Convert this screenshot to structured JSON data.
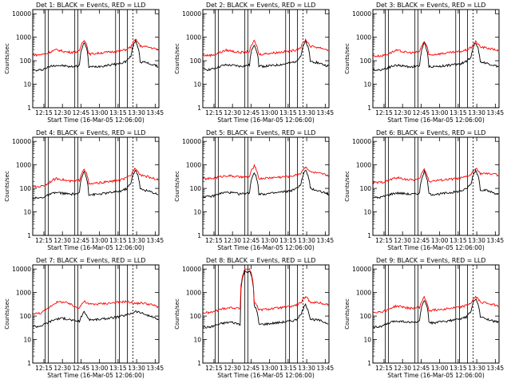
{
  "figure": {
    "layout": "3x3 grid",
    "background": "#ffffff",
    "colors": {
      "events": "#000000",
      "lld": "#ff0000",
      "axes": "#000000"
    }
  },
  "chart_data": [
    {
      "type": "line",
      "title": "Det 1: BLACK = Events, RED = LLD",
      "xlabel": "Start Time (16-Mar-05 12:06:00)",
      "ylabel": "Counts/sec",
      "xticks": [
        "12:15",
        "12:30",
        "12:45",
        "13:00",
        "13:15",
        "13:30",
        "13:45"
      ],
      "yticks": [
        "1",
        "10",
        "100",
        "1000",
        "10000"
      ],
      "yscale": "log",
      "ylim": [
        1,
        15000
      ],
      "xlim_minutes": [
        0,
        102
      ],
      "series": [
        {
          "name": "Events",
          "color": "#000000",
          "values": [
            40,
            38,
            42,
            50,
            60,
            65,
            62,
            60,
            55,
            58,
            62,
            600,
            55,
            55,
            58,
            60,
            65,
            68,
            72,
            80,
            95,
            150,
            700,
            90,
            85,
            75,
            65,
            55
          ]
        },
        {
          "name": "LLD",
          "color": "#ff0000",
          "values": [
            180,
            175,
            185,
            200,
            250,
            290,
            270,
            240,
            230,
            235,
            250,
            800,
            190,
            200,
            210,
            220,
            230,
            240,
            250,
            270,
            300,
            380,
            800,
            420,
            400,
            370,
            330,
            290
          ]
        }
      ]
    },
    {
      "type": "line",
      "title": "Det 2: BLACK = Events, RED = LLD",
      "xlabel": "Start Time (16-Mar-05 12:06:00)",
      "ylabel": "Counts/sec",
      "xticks": [
        "12:15",
        "12:30",
        "12:45",
        "13:00",
        "13:15",
        "13:30",
        "13:45"
      ],
      "yticks": [
        "1",
        "10",
        "100",
        "1000",
        "10000"
      ],
      "yscale": "log",
      "ylim": [
        1,
        15000
      ],
      "xlim_minutes": [
        0,
        102
      ],
      "series": [
        {
          "name": "Events",
          "color": "#000000",
          "values": [
            45,
            42,
            44,
            52,
            60,
            66,
            64,
            62,
            58,
            60,
            65,
            500,
            60,
            58,
            60,
            62,
            66,
            70,
            75,
            82,
            98,
            160,
            650,
            95,
            88,
            78,
            66,
            58
          ]
        },
        {
          "name": "LLD",
          "color": "#ff0000",
          "values": [
            170,
            168,
            175,
            195,
            240,
            280,
            265,
            240,
            228,
            232,
            248,
            700,
            185,
            195,
            205,
            215,
            225,
            238,
            248,
            265,
            295,
            375,
            780,
            410,
            390,
            360,
            320,
            280
          ]
        }
      ]
    },
    {
      "type": "line",
      "title": "Det 3: BLACK = Events, RED = LLD",
      "xlabel": "Start Time (16-Mar-05 12:06:00)",
      "ylabel": "Counts/sec",
      "xticks": [
        "12:15",
        "12:30",
        "12:45",
        "13:00",
        "13:15",
        "13:30",
        "13:45"
      ],
      "yticks": [
        "1",
        "10",
        "100",
        "1000",
        "10000"
      ],
      "yscale": "log",
      "ylim": [
        1,
        15000
      ],
      "xlim_minutes": [
        0,
        102
      ],
      "series": [
        {
          "name": "Events",
          "color": "#000000",
          "values": [
            42,
            40,
            43,
            48,
            58,
            64,
            62,
            58,
            55,
            57,
            60,
            550,
            56,
            56,
            58,
            60,
            64,
            67,
            70,
            78,
            92,
            145,
            600,
            88,
            82,
            72,
            63,
            55
          ]
        },
        {
          "name": "LLD",
          "color": "#ff0000",
          "values": [
            160,
            158,
            165,
            185,
            230,
            270,
            255,
            230,
            220,
            225,
            240,
            650,
            175,
            185,
            195,
            205,
            215,
            225,
            235,
            255,
            285,
            360,
            650,
            380,
            360,
            330,
            300,
            270
          ]
        }
      ]
    },
    {
      "type": "line",
      "title": "Det 4: BLACK = Events, RED = LLD",
      "xlabel": "Start Time (16-Mar-05 12:06:00)",
      "ylabel": "Counts/sec",
      "xticks": [
        "12:15",
        "12:30",
        "12:45",
        "13:00",
        "13:15",
        "13:30",
        "13:45"
      ],
      "yticks": [
        "1",
        "10",
        "100",
        "1000",
        "10000"
      ],
      "yscale": "log",
      "ylim": [
        1,
        15000
      ],
      "xlim_minutes": [
        0,
        102
      ],
      "series": [
        {
          "name": "Events",
          "color": "#000000",
          "values": [
            40,
            38,
            41,
            48,
            58,
            66,
            64,
            60,
            56,
            58,
            62,
            520,
            55,
            55,
            57,
            60,
            64,
            68,
            72,
            80,
            96,
            155,
            620,
            92,
            85,
            74,
            64,
            55
          ]
        },
        {
          "name": "LLD",
          "color": "#ff0000",
          "values": [
            120,
            118,
            125,
            150,
            210,
            260,
            250,
            220,
            200,
            205,
            220,
            700,
            150,
            160,
            170,
            180,
            190,
            200,
            215,
            235,
            270,
            360,
            750,
            380,
            340,
            300,
            260,
            230
          ]
        }
      ]
    },
    {
      "type": "line",
      "title": "Det 5: BLACK = Events, RED = LLD",
      "xlabel": "Start Time (16-Mar-05 12:06:00)",
      "ylabel": "Counts/sec",
      "xticks": [
        "12:15",
        "12:30",
        "12:45",
        "13:00",
        "13:15",
        "13:30",
        "13:45"
      ],
      "yticks": [
        "1",
        "10",
        "100",
        "1000",
        "10000"
      ],
      "yscale": "log",
      "ylim": [
        1,
        15000
      ],
      "xlim_minutes": [
        0,
        102
      ],
      "series": [
        {
          "name": "Events",
          "color": "#000000",
          "values": [
            46,
            44,
            46,
            54,
            62,
            68,
            66,
            62,
            58,
            60,
            66,
            480,
            60,
            58,
            60,
            62,
            66,
            70,
            74,
            82,
            96,
            150,
            600,
            96,
            88,
            76,
            66,
            58
          ]
        },
        {
          "name": "LLD",
          "color": "#ff0000",
          "values": [
            260,
            255,
            265,
            290,
            320,
            350,
            340,
            320,
            300,
            305,
            320,
            900,
            260,
            270,
            280,
            290,
            300,
            310,
            320,
            340,
            370,
            450,
            850,
            500,
            470,
            430,
            390,
            350
          ]
        }
      ]
    },
    {
      "type": "line",
      "title": "Det 6: BLACK = Events, RED = LLD",
      "xlabel": "Start Time (16-Mar-05 12:06:00)",
      "ylabel": "Counts/sec",
      "xticks": [
        "12:15",
        "12:30",
        "12:45",
        "13:00",
        "13:15",
        "13:30",
        "13:45"
      ],
      "yticks": [
        "1",
        "10",
        "100",
        "1000",
        "10000"
      ],
      "yscale": "log",
      "ylim": [
        1,
        15000
      ],
      "xlim_minutes": [
        0,
        102
      ],
      "series": [
        {
          "name": "Events",
          "color": "#000000",
          "values": [
            42,
            40,
            43,
            50,
            58,
            64,
            62,
            60,
            56,
            58,
            62,
            500,
            56,
            56,
            58,
            60,
            64,
            68,
            72,
            80,
            95,
            150,
            600,
            90,
            84,
            74,
            64,
            55
          ]
        },
        {
          "name": "LLD",
          "color": "#ff0000",
          "values": [
            180,
            175,
            185,
            205,
            245,
            285,
            270,
            245,
            230,
            235,
            250,
            650,
            200,
            210,
            220,
            230,
            240,
            250,
            260,
            280,
            310,
            390,
            700,
            430,
            420,
            410,
            430,
            320
          ]
        }
      ]
    },
    {
      "type": "line",
      "title": "Det 7: BLACK = Events, RED = LLD",
      "xlabel": "Start Time (16-Mar-05 12:06:00)",
      "ylabel": "Counts/sec",
      "xticks": [
        "12:15",
        "12:30",
        "12:45",
        "13:00",
        "13:15",
        "13:30",
        "13:45"
      ],
      "yticks": [
        "1",
        "10",
        "100",
        "1000",
        "10000"
      ],
      "yscale": "log",
      "ylim": [
        1,
        15000
      ],
      "xlim_minutes": [
        0,
        102
      ],
      "series": [
        {
          "name": "Events",
          "color": "#000000",
          "values": [
            38,
            36,
            40,
            50,
            62,
            75,
            80,
            78,
            70,
            62,
            60,
            150,
            72,
            70,
            72,
            75,
            80,
            85,
            90,
            100,
            110,
            130,
            160,
            140,
            120,
            100,
            85,
            70
          ]
        },
        {
          "name": "LLD",
          "color": "#ff0000",
          "values": [
            130,
            128,
            140,
            190,
            280,
            380,
            400,
            380,
            320,
            250,
            230,
            420,
            320,
            320,
            330,
            340,
            350,
            360,
            380,
            400,
            420,
            380,
            340,
            360,
            350,
            320,
            280,
            240
          ]
        }
      ]
    },
    {
      "type": "line",
      "title": "Det 8: BLACK = Events, RED = LLD",
      "xlabel": "Start Time (16-Mar-05 12:06:00)",
      "ylabel": "Counts/sec",
      "xticks": [
        "12:15",
        "12:30",
        "12:45",
        "13:00",
        "13:15",
        "13:30",
        "13:45"
      ],
      "yticks": [
        "1",
        "10",
        "100",
        "1000",
        "10000"
      ],
      "yscale": "log",
      "ylim": [
        1,
        15000
      ],
      "xlim_minutes": [
        0,
        102
      ],
      "series": [
        {
          "name": "Events",
          "color": "#000000",
          "values": [
            35,
            33,
            36,
            42,
            48,
            52,
            55,
            50,
            45,
            8000,
            8000,
            300,
            45,
            45,
            47,
            50,
            52,
            55,
            58,
            62,
            70,
            110,
            300,
            75,
            70,
            65,
            55,
            48
          ]
        },
        {
          "name": "LLD",
          "color": "#ff0000",
          "values": [
            140,
            138,
            145,
            170,
            200,
            220,
            230,
            220,
            210,
            10000,
            10000,
            400,
            180,
            190,
            200,
            210,
            220,
            230,
            240,
            260,
            290,
            370,
            650,
            400,
            380,
            360,
            330,
            300
          ]
        }
      ]
    },
    {
      "type": "line",
      "title": "Det 9: BLACK = Events, RED = LLD",
      "xlabel": "Start Time (16-Mar-05 12:06:00)",
      "ylabel": "Counts/sec",
      "xticks": [
        "12:15",
        "12:30",
        "12:45",
        "13:00",
        "13:15",
        "13:30",
        "13:45"
      ],
      "yticks": [
        "1",
        "10",
        "100",
        "1000",
        "10000"
      ],
      "yscale": "log",
      "ylim": [
        1,
        15000
      ],
      "xlim_minutes": [
        0,
        102
      ],
      "series": [
        {
          "name": "Events",
          "color": "#000000",
          "values": [
            36,
            34,
            37,
            45,
            55,
            62,
            60,
            57,
            53,
            55,
            60,
            480,
            52,
            52,
            55,
            58,
            62,
            66,
            70,
            78,
            92,
            150,
            580,
            88,
            80,
            70,
            60,
            52
          ]
        },
        {
          "name": "LLD",
          "color": "#ff0000",
          "values": [
            150,
            148,
            155,
            180,
            225,
            265,
            255,
            230,
            215,
            220,
            235,
            620,
            170,
            180,
            190,
            200,
            210,
            220,
            230,
            250,
            280,
            360,
            650,
            400,
            370,
            340,
            300,
            270
          ]
        }
      ]
    }
  ],
  "markers": {
    "vertical_line_minutes": [
      [
        10,
        12.5,
        34,
        36.5,
        67,
        70,
        76.5
      ],
      [
        10,
        12.5,
        34,
        36.5,
        67,
        70,
        76.5
      ],
      [
        10,
        12.5,
        34,
        36.5,
        67,
        70,
        76.5
      ],
      [
        10,
        12.5,
        34,
        36.5,
        67,
        70,
        76.5
      ],
      [
        10,
        12.5,
        34,
        36.5,
        67,
        70,
        76.5
      ],
      [
        10,
        12.5,
        34,
        36.5,
        67,
        70,
        76.5
      ],
      [
        10,
        12.5,
        34,
        36.5,
        67,
        70,
        76.5
      ],
      [
        10,
        12.5,
        34,
        36.5,
        67,
        70,
        76.5
      ],
      [
        10,
        12.5,
        34,
        36.5,
        67,
        70,
        76.5
      ]
    ],
    "dotted_end_minute": 81
  }
}
